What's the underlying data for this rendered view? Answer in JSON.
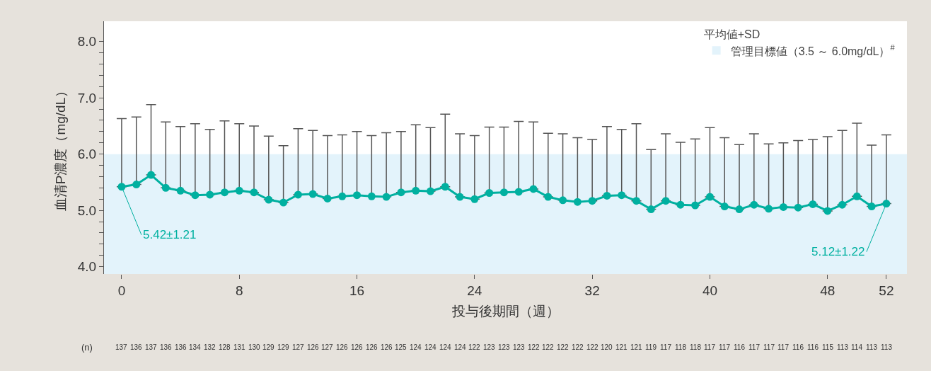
{
  "chart_data": {
    "type": "line",
    "xlabel": "投与後期間（週）",
    "ylabel": "血清P濃度（mg/dL）",
    "legend_title": "平均値+SD",
    "legend": "top right",
    "marker": "circle",
    "line_style": "solid",
    "grid": false,
    "x": [
      0,
      1,
      2,
      3,
      4,
      5,
      6,
      7,
      8,
      9,
      10,
      11,
      12,
      13,
      14,
      15,
      16,
      17,
      18,
      19,
      20,
      21,
      22,
      23,
      24,
      25,
      26,
      27,
      28,
      29,
      30,
      31,
      32,
      33,
      34,
      35,
      36,
      37,
      38,
      39,
      40,
      41,
      42,
      43,
      44,
      45,
      46,
      47,
      48,
      49,
      50,
      51,
      52
    ],
    "xlim": [
      -1.2,
      53.4
    ],
    "xticks": [
      0,
      8,
      16,
      24,
      32,
      40,
      48,
      52
    ],
    "ylim": [
      3.87,
      8.36
    ],
    "yticks": [
      {
        "value": 4,
        "label": "4.0"
      },
      {
        "value": 4.2,
        "label": null
      },
      {
        "value": 4.4,
        "label": null
      },
      {
        "value": 4.6,
        "label": null
      },
      {
        "value": 4.8,
        "label": null
      },
      {
        "value": 5,
        "label": "5.0"
      },
      {
        "value": 5.2,
        "label": null
      },
      {
        "value": 5.4,
        "label": null
      },
      {
        "value": 5.6,
        "label": null
      },
      {
        "value": 5.8,
        "label": null
      },
      {
        "value": 6,
        "label": "6.0"
      },
      {
        "value": 6.2,
        "label": null
      },
      {
        "value": 6.4,
        "label": null
      },
      {
        "value": 6.6,
        "label": null
      },
      {
        "value": 6.8,
        "label": null
      },
      {
        "value": 7,
        "label": "7.0"
      },
      {
        "value": 7.2,
        "label": null
      },
      {
        "value": 7.4,
        "label": null
      },
      {
        "value": 7.6,
        "label": null
      },
      {
        "value": 7.8,
        "label": null
      },
      {
        "value": 8,
        "label": "8.0"
      }
    ],
    "series": [
      {
        "color": "#00b0a0",
        "values": [
          5.42,
          5.46,
          5.63,
          5.4,
          5.35,
          5.27,
          5.28,
          5.32,
          5.35,
          5.32,
          5.19,
          5.14,
          5.28,
          5.29,
          5.21,
          5.25,
          5.27,
          5.25,
          5.24,
          5.32,
          5.35,
          5.34,
          5.42,
          5.24,
          5.2,
          5.31,
          5.32,
          5.33,
          5.38,
          5.24,
          5.18,
          5.15,
          5.17,
          5.26,
          5.27,
          5.17,
          5.02,
          5.17,
          5.1,
          5.09,
          5.24,
          5.07,
          5.02,
          5.1,
          5.03,
          5.06,
          5.05,
          5.11,
          4.99,
          5.1,
          5.25,
          5.07,
          5.12
        ],
        "errors": [
          [
            5.42,
            6.63
          ],
          [
            5.46,
            6.66
          ],
          [
            5.63,
            6.88
          ],
          [
            5.4,
            6.57
          ],
          [
            5.35,
            6.49
          ],
          [
            5.27,
            6.54
          ],
          [
            5.28,
            6.44
          ],
          [
            5.32,
            6.59
          ],
          [
            5.35,
            6.54
          ],
          [
            5.32,
            6.5
          ],
          [
            5.19,
            6.32
          ],
          [
            5.14,
            6.15
          ],
          [
            5.28,
            6.45
          ],
          [
            5.29,
            6.42
          ],
          [
            5.21,
            6.33
          ],
          [
            5.25,
            6.34
          ],
          [
            5.27,
            6.4
          ],
          [
            5.25,
            6.33
          ],
          [
            5.24,
            6.38
          ],
          [
            5.32,
            6.4
          ],
          [
            5.35,
            6.52
          ],
          [
            5.34,
            6.47
          ],
          [
            5.42,
            6.71
          ],
          [
            5.24,
            6.36
          ],
          [
            5.2,
            6.33
          ],
          [
            5.31,
            6.48
          ],
          [
            5.32,
            6.48
          ],
          [
            5.33,
            6.58
          ],
          [
            5.38,
            6.57
          ],
          [
            5.24,
            6.37
          ],
          [
            5.18,
            6.36
          ],
          [
            5.15,
            6.29
          ],
          [
            5.17,
            6.26
          ],
          [
            5.26,
            6.49
          ],
          [
            5.27,
            6.44
          ],
          [
            5.17,
            6.54
          ],
          [
            5.02,
            6.08
          ],
          [
            5.17,
            6.36
          ],
          [
            5.1,
            6.21
          ],
          [
            5.09,
            6.27
          ],
          [
            5.24,
            6.47
          ],
          [
            5.07,
            6.29
          ],
          [
            5.02,
            6.17
          ],
          [
            5.1,
            6.36
          ],
          [
            5.03,
            6.18
          ],
          [
            5.06,
            6.2
          ],
          [
            5.05,
            6.24
          ],
          [
            5.11,
            6.26
          ],
          [
            4.99,
            6.31
          ],
          [
            5.1,
            6.42
          ],
          [
            5.25,
            6.55
          ],
          [
            5.07,
            6.16
          ],
          [
            5.12,
            6.34
          ]
        ]
      }
    ],
    "bands": [
      {
        "axis": "y",
        "from": 3.5,
        "to": 6.0,
        "label": "管理目標値（3.5 ～ 6.0mg/dL）$^{#}$",
        "color": "#e3f3fb"
      }
    ],
    "annotations": [
      {
        "text": "5.42±1.21",
        "x": 0,
        "y": 5.42
      },
      {
        "text": "5.12±1.22",
        "x": 52,
        "y": 5.12
      },
      "(n)",
      "137",
      "136",
      "137",
      "136",
      "136",
      "134",
      "132",
      "128",
      "131",
      "130",
      "129",
      "129",
      "127",
      "126",
      "127",
      "126",
      "126",
      "126",
      "126",
      "125",
      "124",
      "124",
      "124",
      "124",
      "122",
      "123",
      "123",
      "123",
      "122",
      "122",
      "122",
      "122",
      "122",
      "120",
      "121",
      "121",
      "119",
      "117",
      "118",
      "118",
      "117",
      "117",
      "116",
      "117",
      "117",
      "117",
      "116",
      "116",
      "115",
      "113",
      "114",
      "113",
      "113"
    ]
  }
}
